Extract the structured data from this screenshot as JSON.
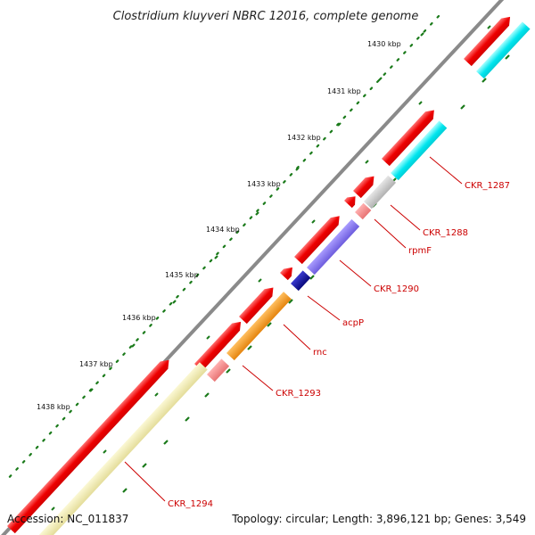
{
  "title": "Clostridium kluyveri NBRC 12016, complete genome",
  "accession": "Accession: NC_011837",
  "summary": "Topology: circular; Length: 3,896,121 bp; Genes: 3,549",
  "colors": {
    "forward": "#ee0000",
    "cyan": "#00e5ee",
    "gray": "#b8b8b8",
    "salmon": "#f08080",
    "slate": "#7b68ee",
    "navy": "#00008b",
    "orange": "#ff8c00",
    "khaki": "#eee8aa",
    "tick": "#1a7a1a",
    "label": "#cc0000"
  },
  "scale": {
    "ticks": [
      "1430 kbp",
      "1431 kbp",
      "1432 kbp",
      "1433 kbp",
      "1434 kbp",
      "1435 kbp",
      "1436 kbp",
      "1437 kbp",
      "1438 kbp"
    ]
  },
  "genes": [
    {
      "label": "CKR_1287"
    },
    {
      "label": "CKR_1288"
    },
    {
      "label": "rpmF"
    },
    {
      "label": "CKR_1290"
    },
    {
      "label": "acpP"
    },
    {
      "label": "rnc"
    },
    {
      "label": "CKR_1293"
    },
    {
      "label": "CKR_1294"
    }
  ]
}
